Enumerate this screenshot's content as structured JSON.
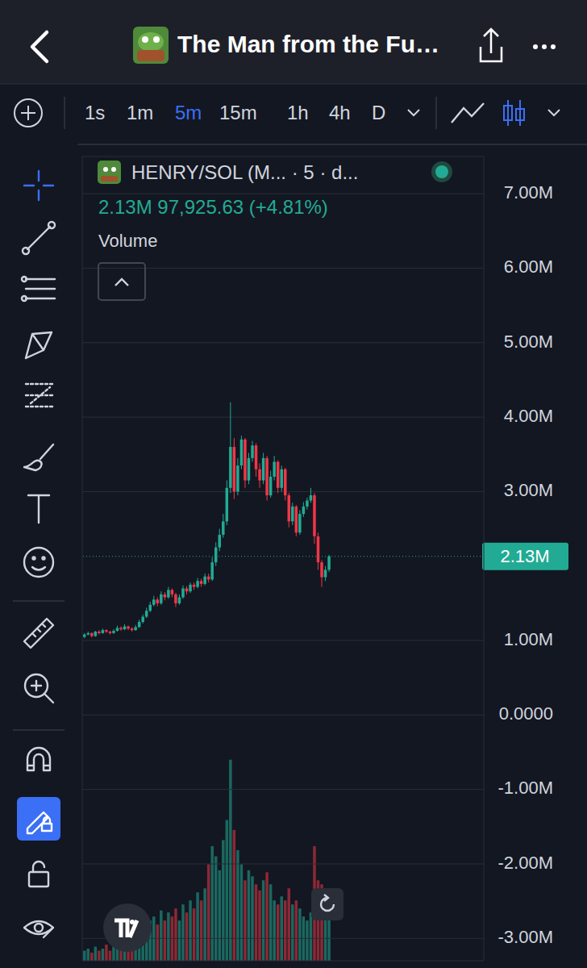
{
  "header": {
    "title": "The Man from the Fu…"
  },
  "toolbar": {
    "timeframes": [
      "1s",
      "1m",
      "5m",
      "15m",
      "1h",
      "4h",
      "D"
    ],
    "selected": "5m"
  },
  "legend_text": {
    "quote": "2.13M 97,925.63 (+4.81%)"
  },
  "chart_data": {
    "type": "candlestick",
    "categories": [
      null,
      null,
      null,
      null,
      null,
      null,
      null,
      null,
      null,
      null,
      null,
      null,
      null,
      null,
      null,
      null,
      null,
      null,
      null,
      null,
      null,
      null,
      null,
      null,
      null,
      null,
      null,
      null,
      null,
      null,
      null,
      null,
      null,
      null,
      null,
      null,
      null,
      null,
      null,
      null,
      null,
      null,
      null,
      null,
      null,
      null,
      null,
      null,
      null,
      null,
      null,
      null,
      null,
      null,
      null,
      null,
      null,
      null,
      null,
      null,
      null,
      null,
      null,
      null,
      null,
      null,
      null,
      null
    ],
    "series": [
      {
        "name": "HENRY/SOL (M... · 5 · d...",
        "type": "candlestick",
        "open": [
          1.05,
          1.08,
          1.1,
          1.06,
          1.12,
          1.1,
          1.14,
          1.12,
          1.1,
          1.13,
          1.17,
          1.15,
          1.19,
          1.16,
          1.14,
          1.18,
          1.25,
          1.32,
          1.4,
          1.48,
          1.55,
          1.5,
          1.62,
          1.58,
          1.68,
          1.62,
          1.5,
          1.58,
          1.7,
          1.66,
          1.75,
          1.72,
          1.8,
          1.76,
          1.86,
          1.82,
          2.05,
          2.25,
          2.42,
          2.6,
          3.05,
          3.6,
          3.0,
          3.35,
          3.7,
          3.15,
          3.45,
          3.62,
          3.3,
          3.15,
          3.45,
          2.95,
          3.2,
          3.4,
          3.05,
          3.3,
          2.95,
          2.6,
          2.8,
          2.45,
          2.7,
          2.8,
          2.88,
          2.95,
          2.4,
          2.05,
          1.85,
          1.95
        ],
        "high": [
          1.1,
          1.12,
          1.11,
          1.13,
          1.14,
          1.16,
          1.15,
          1.13,
          1.15,
          1.2,
          1.19,
          1.22,
          1.2,
          1.18,
          1.21,
          1.28,
          1.35,
          1.44,
          1.52,
          1.6,
          1.58,
          1.66,
          1.65,
          1.72,
          1.7,
          1.64,
          1.62,
          1.74,
          1.73,
          1.78,
          1.78,
          1.84,
          1.83,
          1.9,
          1.9,
          2.12,
          2.32,
          2.5,
          2.7,
          3.15,
          4.2,
          3.72,
          3.45,
          3.75,
          3.72,
          3.52,
          3.68,
          3.65,
          3.38,
          3.52,
          3.48,
          3.28,
          3.48,
          3.42,
          3.35,
          3.32,
          2.98,
          2.85,
          2.82,
          2.75,
          2.86,
          2.92,
          3.05,
          2.98,
          2.45,
          2.08,
          2.0,
          2.15
        ],
        "low": [
          1.03,
          1.07,
          1.04,
          1.05,
          1.08,
          1.09,
          1.1,
          1.08,
          1.09,
          1.12,
          1.13,
          1.14,
          1.14,
          1.12,
          1.13,
          1.17,
          1.23,
          1.3,
          1.38,
          1.46,
          1.46,
          1.48,
          1.54,
          1.56,
          1.58,
          1.45,
          1.48,
          1.56,
          1.62,
          1.64,
          1.68,
          1.7,
          1.72,
          1.74,
          1.78,
          1.8,
          2.0,
          2.2,
          2.38,
          2.55,
          2.98,
          2.9,
          2.95,
          3.3,
          3.05,
          3.1,
          3.4,
          3.2,
          3.05,
          3.1,
          2.88,
          2.92,
          3.15,
          2.98,
          3.0,
          2.88,
          2.52,
          2.55,
          2.4,
          2.42,
          2.66,
          2.76,
          2.85,
          2.3,
          1.95,
          1.72,
          1.8,
          1.92
        ],
        "close": [
          1.08,
          1.1,
          1.06,
          1.12,
          1.1,
          1.14,
          1.12,
          1.1,
          1.13,
          1.17,
          1.15,
          1.19,
          1.16,
          1.14,
          1.18,
          1.25,
          1.32,
          1.4,
          1.48,
          1.55,
          1.5,
          1.62,
          1.58,
          1.68,
          1.62,
          1.5,
          1.58,
          1.7,
          1.66,
          1.75,
          1.72,
          1.8,
          1.76,
          1.86,
          1.82,
          2.05,
          2.25,
          2.42,
          2.6,
          3.05,
          3.6,
          3.0,
          3.35,
          3.7,
          3.15,
          3.45,
          3.62,
          3.3,
          3.15,
          3.45,
          2.95,
          3.2,
          3.4,
          3.05,
          3.3,
          2.95,
          2.6,
          2.8,
          2.45,
          2.7,
          2.8,
          2.88,
          2.95,
          2.4,
          2.05,
          1.85,
          1.95,
          2.13
        ]
      },
      {
        "name": "Volume",
        "type": "bar",
        "axis": "y2",
        "values": [
          5,
          6,
          4,
          7,
          5,
          6,
          8,
          5,
          7,
          9,
          6,
          8,
          7,
          5,
          8,
          12,
          15,
          18,
          20,
          22,
          18,
          25,
          20,
          24,
          22,
          26,
          20,
          28,
          24,
          30,
          26,
          34,
          30,
          36,
          48,
          57,
          52,
          45,
          60,
          70,
          100,
          65,
          55,
          48,
          40,
          45,
          42,
          38,
          35,
          40,
          44,
          38,
          30,
          28,
          32,
          30,
          36,
          28,
          30,
          26,
          22,
          20,
          24,
          57,
          40,
          38,
          30,
          25
        ]
      }
    ],
    "ylim": [
      -3.3,
      7.5
    ],
    "yticks": [
      {
        "value": 7,
        "label": "7.00M"
      },
      {
        "value": 6,
        "label": "6.00M"
      },
      {
        "value": 5,
        "label": "5.00M"
      },
      {
        "value": 4,
        "label": "4.00M"
      },
      {
        "value": 3,
        "label": "3.00M"
      },
      {
        "value": 1,
        "label": "1.00M"
      },
      {
        "value": 0,
        "label": "0.0000"
      },
      {
        "value": -1,
        "label": "-1.00M"
      },
      {
        "value": -2,
        "label": "-2.00M"
      },
      {
        "value": -3,
        "label": "-3.00M"
      }
    ],
    "y2lim": [
      0,
      400
    ],
    "grid": true,
    "tick_labels": "y",
    "price_tag": {
      "value": 2.13,
      "label": "2.13M"
    }
  }
}
